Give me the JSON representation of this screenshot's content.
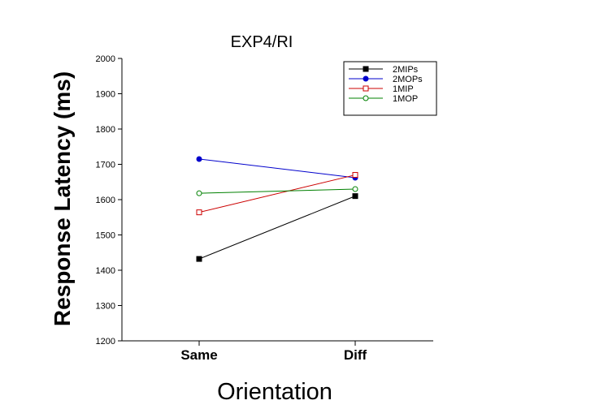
{
  "chart_data": {
    "type": "line",
    "title": "EXP4/RI",
    "xlabel": "Orientation",
    "ylabel": "Response Latency (ms)",
    "categories": [
      "Same",
      "Diff"
    ],
    "ylim": [
      1200,
      2000
    ],
    "yticks": [
      1200,
      1300,
      1400,
      1500,
      1600,
      1700,
      1800,
      1900,
      2000
    ],
    "grid": false,
    "legend_position": "top-right",
    "series": [
      {
        "name": "2MIPs",
        "values": [
          1432,
          1610
        ],
        "color": "#000000",
        "marker": "filled-square"
      },
      {
        "name": "2MOPs",
        "values": [
          1715,
          1662
        ],
        "color": "#0000cc",
        "marker": "filled-circle"
      },
      {
        "name": "1MIP",
        "values": [
          1564,
          1670
        ],
        "color": "#cc0000",
        "marker": "open-square"
      },
      {
        "name": "1MOP",
        "values": [
          1618,
          1630
        ],
        "color": "#008000",
        "marker": "open-circle"
      }
    ]
  }
}
